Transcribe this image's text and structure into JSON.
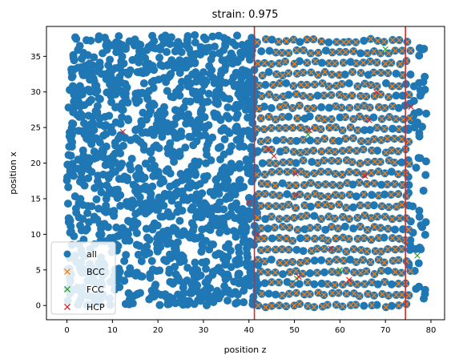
{
  "chart_data": {
    "type": "scatter",
    "title": "strain: 0.975",
    "xlabel": "position z",
    "ylabel": "position x",
    "xlim": [
      -4.5,
      83
    ],
    "ylim": [
      -2,
      39.2
    ],
    "xticks": [
      0,
      10,
      20,
      30,
      40,
      50,
      60,
      70,
      80
    ],
    "yticks": [
      0,
      5,
      10,
      15,
      20,
      25,
      30,
      35
    ],
    "vlines": [
      {
        "x": 41.2,
        "color": "#d62728"
      },
      {
        "x": 74.4,
        "color": "#d62728"
      }
    ],
    "grid": false,
    "legend_position": "lower-left",
    "series": [
      {
        "name": "all",
        "marker": "circle",
        "color": "#1f77b4",
        "x_range": [
          0,
          79
        ],
        "y_range": [
          0,
          38
        ],
        "note_dense_region_x": [
          0,
          42
        ],
        "lattice_region_x": [
          42,
          75
        ]
      },
      {
        "name": "BCC",
        "marker": "x",
        "color": "#ff7f0e",
        "x_range": [
          41,
          77
        ],
        "y_range": [
          0,
          38
        ]
      },
      {
        "name": "FCC",
        "marker": "x",
        "color": "#2ca02c",
        "points": [
          [
            77,
            7
          ],
          [
            50.5,
            3.8
          ],
          [
            53,
            24
          ],
          [
            70,
            36
          ],
          [
            60,
            5
          ]
        ]
      },
      {
        "name": "HCP",
        "marker": "x",
        "color": "#d62728",
        "points": [
          [
            12.3,
            24.4
          ],
          [
            40,
            14.5
          ],
          [
            44.3,
            22
          ],
          [
            45.5,
            21
          ],
          [
            50.4,
            15.6
          ],
          [
            50.3,
            18.5
          ],
          [
            53.3,
            24.6
          ],
          [
            58,
            8
          ],
          [
            62,
            3.6
          ],
          [
            65.5,
            18.2
          ],
          [
            66.5,
            26
          ],
          [
            68,
            30
          ],
          [
            75.6,
            27.9
          ],
          [
            51,
            4
          ],
          [
            42,
            10
          ]
        ]
      }
    ]
  }
}
